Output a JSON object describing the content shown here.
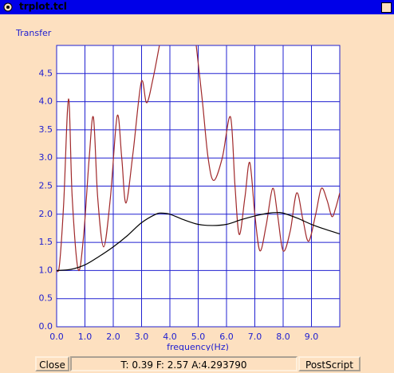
{
  "window": {
    "title": "trplot.tcl"
  },
  "chart_data": {
    "type": "line",
    "ylabel": "Transfer",
    "xlabel": "frequency(Hz)",
    "xlim": [
      0,
      10
    ],
    "ylim": [
      0,
      5
    ],
    "grid": true,
    "xticks": [
      {
        "value": 0,
        "label": "0.0"
      },
      {
        "value": 1,
        "label": "1.0"
      },
      {
        "value": 2,
        "label": "2.0"
      },
      {
        "value": 3,
        "label": "3.0"
      },
      {
        "value": 4,
        "label": "4.0"
      },
      {
        "value": 5,
        "label": "5.0"
      },
      {
        "value": 6,
        "label": "6.0"
      },
      {
        "value": 7,
        "label": "7.0"
      },
      {
        "value": 8,
        "label": "8.0"
      },
      {
        "value": 9,
        "label": "9.0"
      }
    ],
    "yticks": [
      {
        "value": 0,
        "label": "0.0"
      },
      0.5,
      {
        "value": 1,
        "label": "1.0"
      },
      1.5,
      {
        "value": 2,
        "label": "2.0"
      },
      2.5,
      {
        "value": 3,
        "label": "3.0"
      },
      3.5,
      {
        "value": 4,
        "label": "4.0"
      },
      4.5
    ],
    "series": [
      {
        "color": "#a0282a",
        "x": [
          0,
          0.1,
          0.25,
          0.42,
          0.55,
          0.76,
          0.95,
          1.15,
          1.3,
          1.45,
          1.66,
          1.9,
          2.14,
          2.3,
          2.45,
          2.7,
          2.99,
          3.18,
          3.4,
          3.63,
          4.2,
          4.93,
          5.15,
          5.35,
          5.55,
          5.85,
          6.14,
          6.3,
          6.45,
          6.65,
          6.82,
          7.0,
          7.18,
          7.4,
          7.63,
          7.8,
          8.0,
          8.25,
          8.48,
          8.7,
          8.9,
          9.15,
          9.35,
          9.55,
          9.72,
          9.85,
          10
        ],
        "values": [
          1.0,
          1.1,
          2.2,
          4.05,
          2.3,
          1.02,
          1.6,
          3.0,
          3.72,
          2.3,
          1.42,
          2.3,
          3.75,
          3.0,
          2.2,
          3.1,
          4.35,
          3.98,
          4.4,
          5.0,
          null,
          5.0,
          4.0,
          3.0,
          2.6,
          3.0,
          3.73,
          2.5,
          1.64,
          2.3,
          2.92,
          2.0,
          1.35,
          1.8,
          2.46,
          2.0,
          1.35,
          1.7,
          2.38,
          1.9,
          1.52,
          2.0,
          2.46,
          2.25,
          1.96,
          2.1,
          2.38
        ]
      },
      {
        "color": "#000000",
        "x": [
          0,
          0.5,
          1,
          1.5,
          2,
          2.5,
          3,
          3.5,
          3.7,
          4,
          4.5,
          5,
          5.5,
          6,
          6.5,
          7,
          7.5,
          7.8,
          8,
          8.5,
          9,
          9.5,
          10
        ],
        "values": [
          1.0,
          1.02,
          1.1,
          1.25,
          1.42,
          1.62,
          1.85,
          2.0,
          2.02,
          2.0,
          1.9,
          1.82,
          1.8,
          1.82,
          1.9,
          1.97,
          2.02,
          2.03,
          2.02,
          1.93,
          1.82,
          1.73,
          1.65
        ]
      }
    ]
  },
  "buttons": {
    "close": "Close",
    "status": "T: 0.39 F: 2.57 A:4.293790",
    "postscript": "PostScript"
  }
}
